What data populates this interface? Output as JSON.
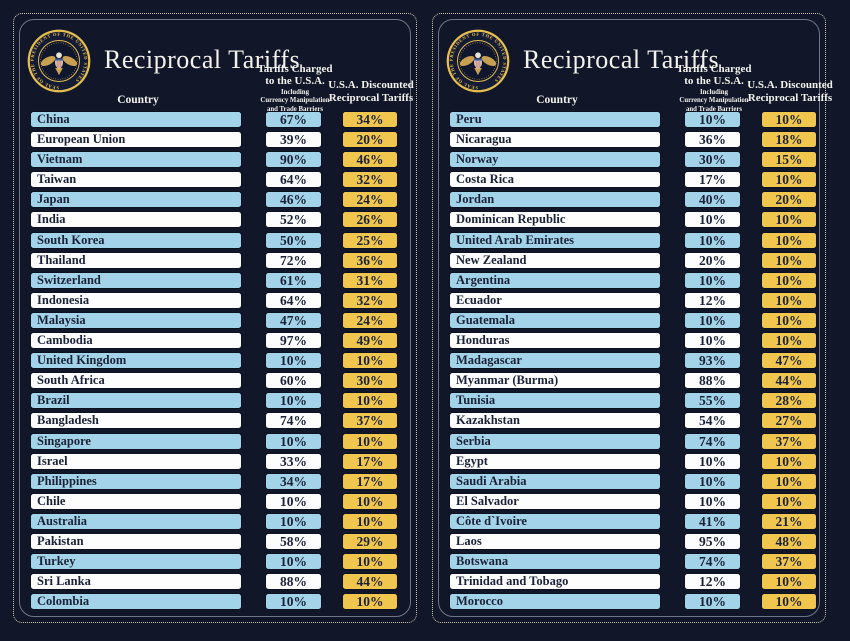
{
  "chart_data": {
    "type": "table",
    "title": "Reciprocal Tariffs",
    "columns": [
      "Country",
      "Tariffs Charged to the U.S.A. Including Currency Manipulation and Trade Barriers",
      "U.S.A. Discounted Reciprocal Tariffs"
    ],
    "tables": [
      {
        "rows": [
          [
            "China",
            "67%",
            "34%"
          ],
          [
            "European Union",
            "39%",
            "20%"
          ],
          [
            "Vietnam",
            "90%",
            "46%"
          ],
          [
            "Taiwan",
            "64%",
            "32%"
          ],
          [
            "Japan",
            "46%",
            "24%"
          ],
          [
            "India",
            "52%",
            "26%"
          ],
          [
            "South Korea",
            "50%",
            "25%"
          ],
          [
            "Thailand",
            "72%",
            "36%"
          ],
          [
            "Switzerland",
            "61%",
            "31%"
          ],
          [
            "Indonesia",
            "64%",
            "32%"
          ],
          [
            "Malaysia",
            "47%",
            "24%"
          ],
          [
            "Cambodia",
            "97%",
            "49%"
          ],
          [
            "United Kingdom",
            "10%",
            "10%"
          ],
          [
            "South Africa",
            "60%",
            "30%"
          ],
          [
            "Brazil",
            "10%",
            "10%"
          ],
          [
            "Bangladesh",
            "74%",
            "37%"
          ],
          [
            "Singapore",
            "10%",
            "10%"
          ],
          [
            "Israel",
            "33%",
            "17%"
          ],
          [
            "Philippines",
            "34%",
            "17%"
          ],
          [
            "Chile",
            "10%",
            "10%"
          ],
          [
            "Australia",
            "10%",
            "10%"
          ],
          [
            "Pakistan",
            "58%",
            "29%"
          ],
          [
            "Turkey",
            "10%",
            "10%"
          ],
          [
            "Sri Lanka",
            "88%",
            "44%"
          ],
          [
            "Colombia",
            "10%",
            "10%"
          ]
        ]
      },
      {
        "rows": [
          [
            "Peru",
            "10%",
            "10%"
          ],
          [
            "Nicaragua",
            "36%",
            "18%"
          ],
          [
            "Norway",
            "30%",
            "15%"
          ],
          [
            "Costa Rica",
            "17%",
            "10%"
          ],
          [
            "Jordan",
            "40%",
            "20%"
          ],
          [
            "Dominican Republic",
            "10%",
            "10%"
          ],
          [
            "United Arab Emirates",
            "10%",
            "10%"
          ],
          [
            "New Zealand",
            "20%",
            "10%"
          ],
          [
            "Argentina",
            "10%",
            "10%"
          ],
          [
            "Ecuador",
            "12%",
            "10%"
          ],
          [
            "Guatemala",
            "10%",
            "10%"
          ],
          [
            "Honduras",
            "10%",
            "10%"
          ],
          [
            "Madagascar",
            "93%",
            "47%"
          ],
          [
            "Myanmar (Burma)",
            "88%",
            "44%"
          ],
          [
            "Tunisia",
            "55%",
            "28%"
          ],
          [
            "Kazakhstan",
            "54%",
            "27%"
          ],
          [
            "Serbia",
            "74%",
            "37%"
          ],
          [
            "Egypt",
            "10%",
            "10%"
          ],
          [
            "Saudi Arabia",
            "10%",
            "10%"
          ],
          [
            "El Salvador",
            "10%",
            "10%"
          ],
          [
            "Côte d`Ivoire",
            "41%",
            "21%"
          ],
          [
            "Laos",
            "95%",
            "48%"
          ],
          [
            "Botswana",
            "74%",
            "37%"
          ],
          [
            "Trinidad and Tobago",
            "12%",
            "10%"
          ],
          [
            "Morocco",
            "10%",
            "10%"
          ]
        ]
      }
    ]
  },
  "panel": {
    "title": "Reciprocal Tariffs",
    "columns": {
      "country": "Country",
      "charged_line1": "Tariffs Charged",
      "charged_line2": "to the U.S.A.",
      "charged_sub1": "Including",
      "charged_sub2": "Currency Manipulation",
      "charged_sub3": "and Trade Barriers",
      "discounted_line1": "U.S.A. Discounted",
      "discounted_line2": "Reciprocal Tariffs"
    },
    "seal_ring_text": "SEAL OF THE PRESIDENT OF THE UNITED STATES"
  },
  "colors": {
    "background": "#111729",
    "row_blue": "#a2d3e8",
    "row_white": "#fdfdfd",
    "discount_yellow": "#f1c64e",
    "text_navy": "#1b2238",
    "seal_gold": "#e5bd50",
    "dotted_border": "#cfc7ad"
  }
}
